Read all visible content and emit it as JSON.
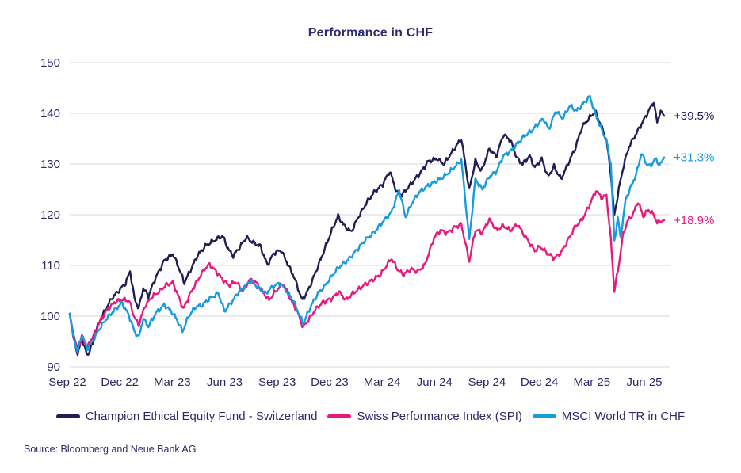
{
  "title": "Performance in CHF",
  "source": "Source: Bloomberg and Neue Bank AG",
  "colors": {
    "navy": "#221d52",
    "pink": "#e8197d",
    "cyan": "#169bdf",
    "text": "#2b2a68",
    "grid": "#d9d9d9",
    "background": "#ffffff"
  },
  "legend": {
    "items": [
      {
        "label": "Champion Ethical Equity Fund - Switzerland",
        "color": "#221d52"
      },
      {
        "label": "Swiss Performance Index (SPI)",
        "color": "#e8197d"
      },
      {
        "label": "MSCI World TR in CHF",
        "color": "#169bdf"
      }
    ]
  },
  "chart_data": {
    "type": "line",
    "title": "Performance in CHF",
    "xlabel": "",
    "ylabel": "",
    "x_unit": "months since Sep 2022",
    "ylim": [
      90,
      150
    ],
    "y_ticks": [
      90,
      100,
      110,
      120,
      130,
      140,
      150
    ],
    "x_ticks": [
      {
        "m": 0,
        "label": "Sep 22"
      },
      {
        "m": 3,
        "label": "Dec 22"
      },
      {
        "m": 6,
        "label": "Mar 23"
      },
      {
        "m": 9,
        "label": "Jun 23"
      },
      {
        "m": 12,
        "label": "Sep 23"
      },
      {
        "m": 15,
        "label": "Dec 23"
      },
      {
        "m": 18,
        "label": "Mar 24"
      },
      {
        "m": 21,
        "label": "Jun 24"
      },
      {
        "m": 24,
        "label": "Sep 24"
      },
      {
        "m": 27,
        "label": "Dec 24"
      },
      {
        "m": 30,
        "label": "Mar 25"
      },
      {
        "m": 33,
        "label": "Jun 25"
      }
    ],
    "grid": "horizontal",
    "legend_position": "bottom",
    "series": [
      {
        "name": "Champion Ethical Equity Fund - Switzerland",
        "color": "#221d52",
        "end_label": "+39.5%",
        "points": [
          [
            0,
            100.5
          ],
          [
            0.2,
            96.5
          ],
          [
            0.45,
            92.5
          ],
          [
            0.7,
            95.5
          ],
          [
            1.0,
            92.2
          ],
          [
            1.3,
            94.5
          ],
          [
            1.6,
            98
          ],
          [
            2.0,
            101
          ],
          [
            2.4,
            103.5
          ],
          [
            2.8,
            105
          ],
          [
            3.2,
            106.5
          ],
          [
            3.45,
            108.9
          ],
          [
            3.7,
            103.5
          ],
          [
            3.95,
            101.5
          ],
          [
            4.2,
            105.5
          ],
          [
            4.5,
            104
          ],
          [
            4.9,
            107.5
          ],
          [
            5.4,
            110.9
          ],
          [
            5.9,
            112.3
          ],
          [
            6.3,
            109
          ],
          [
            6.55,
            106.6
          ],
          [
            6.9,
            109
          ],
          [
            7.3,
            111.9
          ],
          [
            7.8,
            114
          ],
          [
            8.3,
            115
          ],
          [
            8.75,
            115.8
          ],
          [
            9.1,
            113
          ],
          [
            9.35,
            111.9
          ],
          [
            9.7,
            113.5
          ],
          [
            10.1,
            115.5
          ],
          [
            10.5,
            114.5
          ],
          [
            10.9,
            113.8
          ],
          [
            11.3,
            110.1
          ],
          [
            11.7,
            112.5
          ],
          [
            12.1,
            113
          ],
          [
            12.5,
            110
          ],
          [
            12.8,
            108
          ],
          [
            13.3,
            103.1
          ],
          [
            13.7,
            105.5
          ],
          [
            14.1,
            109
          ],
          [
            14.5,
            112.5
          ],
          [
            15.0,
            117
          ],
          [
            15.35,
            119.7
          ],
          [
            15.7,
            117.8
          ],
          [
            16.1,
            116.6
          ],
          [
            16.5,
            119.5
          ],
          [
            17.0,
            122.5
          ],
          [
            17.4,
            124.4
          ],
          [
            17.9,
            126
          ],
          [
            18.3,
            128.6
          ],
          [
            18.7,
            124.5
          ],
          [
            19.0,
            123.9
          ],
          [
            19.5,
            126
          ],
          [
            20.0,
            128
          ],
          [
            20.5,
            130.5
          ],
          [
            21.0,
            131.1
          ],
          [
            21.4,
            130
          ],
          [
            21.9,
            132.5
          ],
          [
            22.4,
            135
          ],
          [
            22.85,
            124.9
          ],
          [
            23.2,
            130.6
          ],
          [
            23.55,
            128.6
          ],
          [
            24.0,
            133
          ],
          [
            24.4,
            131.5
          ],
          [
            24.8,
            135.8
          ],
          [
            25.2,
            134.7
          ],
          [
            25.6,
            131
          ],
          [
            25.9,
            130
          ],
          [
            26.3,
            131.6
          ],
          [
            26.6,
            129.3
          ],
          [
            27.0,
            131
          ],
          [
            27.35,
            127.5
          ],
          [
            27.7,
            129.5
          ],
          [
            28.1,
            127
          ],
          [
            28.5,
            130
          ],
          [
            28.9,
            133
          ],
          [
            29.3,
            137.3
          ],
          [
            29.7,
            139
          ],
          [
            30.05,
            140.4
          ],
          [
            30.4,
            137.5
          ],
          [
            30.7,
            134.7
          ],
          [
            30.95,
            128
          ],
          [
            31.15,
            119.8
          ],
          [
            31.4,
            125
          ],
          [
            31.7,
            130
          ],
          [
            32.0,
            133.5
          ],
          [
            32.4,
            136
          ],
          [
            32.8,
            138.5
          ],
          [
            33.2,
            141
          ],
          [
            33.4,
            142.3
          ],
          [
            33.6,
            138.2
          ],
          [
            33.8,
            140.5
          ],
          [
            34.0,
            139.5
          ]
        ]
      },
      {
        "name": "Swiss Performance Index (SPI)",
        "color": "#e8197d",
        "end_label": "+18.9%",
        "points": [
          [
            0,
            100.3
          ],
          [
            0.2,
            96
          ],
          [
            0.45,
            93.5
          ],
          [
            0.7,
            96
          ],
          [
            1.0,
            93.8
          ],
          [
            1.4,
            96.5
          ],
          [
            1.8,
            99.5
          ],
          [
            2.2,
            101.5
          ],
          [
            2.6,
            102.8
          ],
          [
            3.0,
            103.3
          ],
          [
            3.4,
            103
          ],
          [
            3.7,
            99.8
          ],
          [
            3.95,
            98.3
          ],
          [
            4.3,
            102
          ],
          [
            4.7,
            103.8
          ],
          [
            5.1,
            104.8
          ],
          [
            5.5,
            106.1
          ],
          [
            5.9,
            106.6
          ],
          [
            6.2,
            104
          ],
          [
            6.5,
            101.4
          ],
          [
            6.9,
            104.5
          ],
          [
            7.3,
            107
          ],
          [
            7.7,
            109.3
          ],
          [
            8.0,
            110.2
          ],
          [
            8.4,
            108.7
          ],
          [
            8.8,
            107
          ],
          [
            9.1,
            106.1
          ],
          [
            9.5,
            106.8
          ],
          [
            9.9,
            105
          ],
          [
            10.3,
            107.2
          ],
          [
            10.7,
            106.5
          ],
          [
            11.1,
            104.5
          ],
          [
            11.4,
            103.2
          ],
          [
            11.8,
            105
          ],
          [
            12.2,
            106.5
          ],
          [
            12.6,
            103.5
          ],
          [
            13.0,
            101
          ],
          [
            13.35,
            97.8
          ],
          [
            13.7,
            99.5
          ],
          [
            14.1,
            101.5
          ],
          [
            14.5,
            102.8
          ],
          [
            15.0,
            103.5
          ],
          [
            15.4,
            104.8
          ],
          [
            15.8,
            103.2
          ],
          [
            16.2,
            104.5
          ],
          [
            16.6,
            105.5
          ],
          [
            17.0,
            106.5
          ],
          [
            17.4,
            107.3
          ],
          [
            17.8,
            108.3
          ],
          [
            18.1,
            109.9
          ],
          [
            18.4,
            111.4
          ],
          [
            18.8,
            109
          ],
          [
            19.1,
            108.2
          ],
          [
            19.5,
            109.3
          ],
          [
            19.9,
            108.8
          ],
          [
            20.3,
            110
          ],
          [
            20.6,
            113
          ],
          [
            20.85,
            115.6
          ],
          [
            21.2,
            116.9
          ],
          [
            21.6,
            116.4
          ],
          [
            22.0,
            117.5
          ],
          [
            22.4,
            118.1
          ],
          [
            22.85,
            110.8
          ],
          [
            23.2,
            117
          ],
          [
            23.6,
            116.5
          ],
          [
            24.0,
            119.1
          ],
          [
            24.4,
            117
          ],
          [
            24.8,
            117.8
          ],
          [
            25.2,
            116.9
          ],
          [
            25.6,
            118.1
          ],
          [
            26.0,
            116
          ],
          [
            26.3,
            114.4
          ],
          [
            26.6,
            112.9
          ],
          [
            26.9,
            113.7
          ],
          [
            27.3,
            112.5
          ],
          [
            27.7,
            111.4
          ],
          [
            28.1,
            112.5
          ],
          [
            28.5,
            115
          ],
          [
            28.9,
            117.6
          ],
          [
            29.3,
            119
          ],
          [
            29.7,
            121.7
          ],
          [
            30.1,
            124.8
          ],
          [
            30.45,
            123.3
          ],
          [
            30.7,
            123.8
          ],
          [
            30.95,
            115
          ],
          [
            31.15,
            105
          ],
          [
            31.4,
            110
          ],
          [
            31.65,
            116.1
          ],
          [
            31.9,
            118.7
          ],
          [
            32.2,
            120
          ],
          [
            32.5,
            122.6
          ],
          [
            32.8,
            119.7
          ],
          [
            33.1,
            121
          ],
          [
            33.4,
            120
          ],
          [
            33.6,
            118.5
          ],
          [
            34.0,
            118.9
          ]
        ]
      },
      {
        "name": "MSCI World TR in CHF",
        "color": "#169bdf",
        "end_label": "+31.3%",
        "points": [
          [
            0,
            100.5
          ],
          [
            0.2,
            96
          ],
          [
            0.45,
            93
          ],
          [
            0.7,
            96.5
          ],
          [
            1.0,
            93.5
          ],
          [
            1.3,
            95
          ],
          [
            1.7,
            97.5
          ],
          [
            2.1,
            99.5
          ],
          [
            2.5,
            101
          ],
          [
            3.0,
            102.6
          ],
          [
            3.4,
            100
          ],
          [
            3.7,
            97
          ],
          [
            3.95,
            95.8
          ],
          [
            4.2,
            99.5
          ],
          [
            4.5,
            98
          ],
          [
            4.9,
            100.5
          ],
          [
            5.4,
            102.2
          ],
          [
            5.8,
            101
          ],
          [
            6.1,
            99.5
          ],
          [
            6.45,
            97
          ],
          [
            6.8,
            100
          ],
          [
            7.2,
            101.8
          ],
          [
            7.6,
            102.2
          ],
          [
            8.0,
            103.5
          ],
          [
            8.5,
            104.5
          ],
          [
            8.85,
            101
          ],
          [
            9.2,
            102.5
          ],
          [
            9.6,
            104.5
          ],
          [
            10.0,
            105.8
          ],
          [
            10.4,
            107
          ],
          [
            10.8,
            105.5
          ],
          [
            11.2,
            104.5
          ],
          [
            11.6,
            105.8
          ],
          [
            12.0,
            106.5
          ],
          [
            12.4,
            105
          ],
          [
            12.8,
            103
          ],
          [
            13.35,
            98.5
          ],
          [
            13.8,
            102
          ],
          [
            14.2,
            104.5
          ],
          [
            14.6,
            106
          ],
          [
            15.0,
            108
          ],
          [
            15.4,
            109.7
          ],
          [
            15.9,
            111
          ],
          [
            16.4,
            113
          ],
          [
            16.9,
            115
          ],
          [
            17.4,
            116.5
          ],
          [
            17.9,
            118.6
          ],
          [
            18.4,
            120.5
          ],
          [
            18.85,
            124.9
          ],
          [
            19.2,
            119.5
          ],
          [
            19.6,
            122.5
          ],
          [
            20.0,
            124.5
          ],
          [
            20.4,
            125.5
          ],
          [
            20.9,
            126.5
          ],
          [
            21.4,
            127.5
          ],
          [
            21.9,
            129
          ],
          [
            22.4,
            130.8
          ],
          [
            22.85,
            115
          ],
          [
            23.2,
            127
          ],
          [
            23.6,
            125
          ],
          [
            24.0,
            127.5
          ],
          [
            24.4,
            128.5
          ],
          [
            24.8,
            131.6
          ],
          [
            25.2,
            132.5
          ],
          [
            25.6,
            134
          ],
          [
            26.0,
            135.5
          ],
          [
            26.4,
            136.5
          ],
          [
            26.8,
            138
          ],
          [
            27.1,
            138.9
          ],
          [
            27.4,
            136.8
          ],
          [
            27.8,
            140.5
          ],
          [
            28.2,
            139
          ],
          [
            28.6,
            141.5
          ],
          [
            29.0,
            140.5
          ],
          [
            29.4,
            142
          ],
          [
            29.75,
            143.3
          ],
          [
            30.1,
            139.5
          ],
          [
            30.4,
            137
          ],
          [
            30.7,
            134.5
          ],
          [
            30.95,
            130
          ],
          [
            31.15,
            114.7
          ],
          [
            31.35,
            119.5
          ],
          [
            31.5,
            115.5
          ],
          [
            31.8,
            123
          ],
          [
            32.1,
            125.5
          ],
          [
            32.4,
            128
          ],
          [
            32.7,
            132.1
          ],
          [
            33.0,
            130
          ],
          [
            33.2,
            129.6
          ],
          [
            33.5,
            131
          ],
          [
            33.75,
            129.8
          ],
          [
            34.0,
            131.3
          ]
        ]
      }
    ]
  }
}
